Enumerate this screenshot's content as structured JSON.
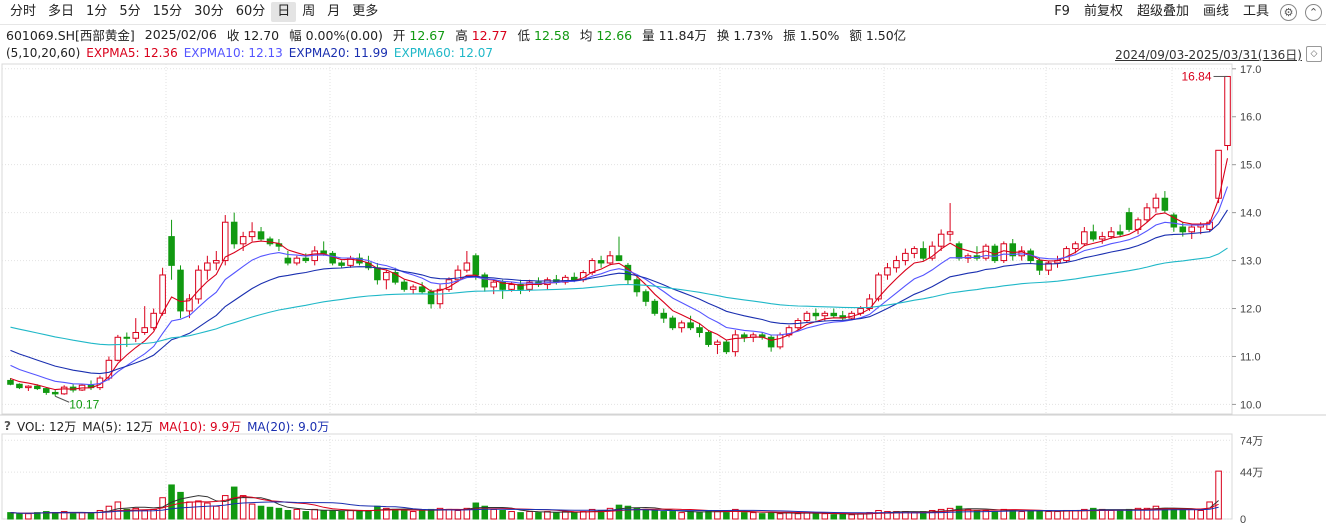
{
  "toolbar": {
    "periods": [
      "分时",
      "多日",
      "1分",
      "5分",
      "15分",
      "30分",
      "60分",
      "日",
      "周",
      "月",
      "更多"
    ],
    "active": "日",
    "right_items": [
      "F9",
      "前复权",
      "超级叠加",
      "画线",
      "工具"
    ],
    "icons": [
      "settings-icon",
      "collapse-icon"
    ]
  },
  "info": {
    "code": "601069.SH[西部黄金]",
    "date": "2025/02/06",
    "close_label": "收",
    "close": "12.70",
    "change_label": "幅",
    "change": "0.00%(0.00)",
    "open_label": "开",
    "open": "12.67",
    "high_label": "高",
    "high": "12.77",
    "low_label": "低",
    "low": "12.58",
    "avg_label": "均",
    "avg": "12.66",
    "vol_label": "量",
    "vol": "11.84万",
    "turnover_label": "换",
    "turnover": "1.73%",
    "amplitude_label": "振",
    "amplitude": "1.50%",
    "amount_label": "额",
    "amount": "1.50亿"
  },
  "ma_legend": {
    "params": "(5,10,20,60)",
    "items": [
      {
        "text": "EXPMA5: 12.36",
        "color": "#d9001b"
      },
      {
        "text": "EXPMA10: 12.13",
        "color": "#5555ff"
      },
      {
        "text": "EXPMA20: 11.99",
        "color": "#1a2fb0"
      },
      {
        "text": "EXPMA60: 12.07",
        "color": "#20b8c8"
      }
    ]
  },
  "range": "2024/09/03-2025/03/31(136日)",
  "vol_legend": {
    "help": "?",
    "vol": "VOL: 12万",
    "ma5": "MA(5): 12万",
    "ma10": "MA(10): 9.9万",
    "ma20": "MA(20): 9.0万",
    "ma10_color": "#d9001b",
    "ma20_color": "#1a2fb0"
  },
  "colors": {
    "up": "#d9001b",
    "down": "#119911",
    "grid": "#e2e2e2"
  },
  "chart_data": {
    "type": "candlestick",
    "title": "601069.SH[西部黄金]",
    "price_axis": {
      "ylim": [
        9.8,
        17.1
      ],
      "ticks": [
        10.0,
        11.0,
        12.0,
        13.0,
        14.0,
        15.0,
        16.0,
        17.0
      ]
    },
    "volume_axis": {
      "ylim": [
        0,
        78
      ],
      "ticks": [
        0,
        44,
        74
      ],
      "tick_labels": [
        "0",
        "44万",
        "74万"
      ]
    },
    "annotations": [
      {
        "text": "16.84",
        "kind": "max"
      },
      {
        "text": "10.17",
        "kind": "min"
      }
    ],
    "ohlc": [
      [
        10.5,
        10.55,
        10.4,
        10.42
      ],
      [
        10.42,
        10.44,
        10.32,
        10.35
      ],
      [
        10.35,
        10.4,
        10.28,
        10.38
      ],
      [
        10.38,
        10.42,
        10.3,
        10.33
      ],
      [
        10.33,
        10.36,
        10.2,
        10.25
      ],
      [
        10.25,
        10.3,
        10.17,
        10.22
      ],
      [
        10.22,
        10.4,
        10.2,
        10.36
      ],
      [
        10.36,
        10.42,
        10.25,
        10.3
      ],
      [
        10.3,
        10.42,
        10.28,
        10.4
      ],
      [
        10.4,
        10.5,
        10.3,
        10.35
      ],
      [
        10.35,
        10.6,
        10.3,
        10.55
      ],
      [
        10.55,
        11.0,
        10.5,
        10.92
      ],
      [
        10.92,
        11.45,
        10.9,
        11.4
      ],
      [
        11.4,
        11.5,
        11.2,
        11.38
      ],
      [
        11.38,
        11.8,
        11.3,
        11.5
      ],
      [
        11.5,
        12.05,
        11.45,
        11.6
      ],
      [
        11.6,
        12.0,
        11.55,
        11.9
      ],
      [
        11.9,
        12.85,
        11.85,
        12.7
      ],
      [
        13.5,
        13.85,
        12.6,
        12.9
      ],
      [
        12.8,
        12.9,
        11.8,
        11.95
      ],
      [
        11.95,
        12.3,
        11.8,
        12.2
      ],
      [
        12.2,
        12.9,
        12.1,
        12.8
      ],
      [
        12.8,
        13.1,
        12.6,
        12.95
      ],
      [
        12.95,
        13.2,
        12.8,
        13.0
      ],
      [
        13.0,
        13.95,
        12.9,
        13.8
      ],
      [
        13.8,
        14.0,
        13.25,
        13.35
      ],
      [
        13.35,
        13.6,
        13.2,
        13.5
      ],
      [
        13.5,
        13.8,
        13.4,
        13.6
      ],
      [
        13.6,
        13.7,
        13.4,
        13.45
      ],
      [
        13.45,
        13.5,
        13.3,
        13.35
      ],
      [
        13.35,
        13.45,
        13.2,
        13.3
      ],
      [
        13.05,
        13.2,
        12.9,
        12.95
      ],
      [
        12.95,
        13.1,
        12.9,
        13.05
      ],
      [
        13.05,
        13.15,
        12.95,
        13.0
      ],
      [
        13.0,
        13.3,
        12.9,
        13.2
      ],
      [
        13.2,
        13.4,
        13.1,
        13.15
      ],
      [
        13.15,
        13.2,
        12.9,
        12.95
      ],
      [
        12.95,
        13.0,
        12.85,
        12.9
      ],
      [
        12.9,
        13.1,
        12.85,
        13.05
      ],
      [
        13.05,
        13.15,
        12.9,
        12.95
      ],
      [
        12.95,
        13.1,
        12.8,
        12.85
      ],
      [
        12.85,
        12.95,
        12.5,
        12.6
      ],
      [
        12.6,
        12.8,
        12.4,
        12.75
      ],
      [
        12.75,
        12.85,
        12.5,
        12.55
      ],
      [
        12.55,
        12.6,
        12.35,
        12.4
      ],
      [
        12.4,
        12.5,
        12.3,
        12.45
      ],
      [
        12.45,
        12.55,
        12.3,
        12.35
      ],
      [
        12.35,
        12.4,
        12.0,
        12.1
      ],
      [
        12.1,
        12.5,
        12.0,
        12.4
      ],
      [
        12.4,
        12.65,
        12.35,
        12.6
      ],
      [
        12.6,
        12.9,
        12.55,
        12.8
      ],
      [
        12.8,
        13.2,
        12.75,
        12.95
      ],
      [
        13.1,
        13.15,
        12.6,
        12.7
      ],
      [
        12.7,
        12.75,
        12.35,
        12.45
      ],
      [
        12.45,
        12.6,
        12.3,
        12.55
      ],
      [
        12.55,
        12.6,
        12.2,
        12.4
      ],
      [
        12.4,
        12.55,
        12.35,
        12.5
      ],
      [
        12.5,
        12.6,
        12.3,
        12.4
      ],
      [
        12.4,
        12.6,
        12.35,
        12.55
      ],
      [
        12.55,
        12.65,
        12.45,
        12.5
      ],
      [
        12.5,
        12.65,
        12.4,
        12.6
      ],
      [
        12.6,
        12.7,
        12.5,
        12.55
      ],
      [
        12.55,
        12.7,
        12.5,
        12.65
      ],
      [
        12.65,
        12.75,
        12.55,
        12.6
      ],
      [
        12.6,
        12.8,
        12.55,
        12.75
      ],
      [
        12.75,
        13.05,
        12.7,
        13.0
      ],
      [
        13.0,
        13.1,
        12.85,
        12.95
      ],
      [
        12.95,
        13.2,
        12.9,
        13.1
      ],
      [
        13.1,
        13.5,
        13.0,
        13.0
      ],
      [
        12.9,
        12.95,
        12.5,
        12.6
      ],
      [
        12.6,
        12.65,
        12.25,
        12.35
      ],
      [
        12.35,
        12.4,
        12.05,
        12.15
      ],
      [
        12.15,
        12.2,
        11.85,
        11.9
      ],
      [
        11.9,
        12.0,
        11.7,
        11.8
      ],
      [
        11.8,
        11.85,
        11.55,
        11.6
      ],
      [
        11.6,
        11.75,
        11.5,
        11.7
      ],
      [
        11.7,
        11.85,
        11.55,
        11.6
      ],
      [
        11.6,
        11.7,
        11.4,
        11.5
      ],
      [
        11.5,
        11.55,
        11.2,
        11.25
      ],
      [
        11.25,
        11.35,
        11.05,
        11.3
      ],
      [
        11.3,
        11.35,
        11.05,
        11.1
      ],
      [
        11.1,
        11.55,
        11.0,
        11.45
      ],
      [
        11.45,
        11.5,
        11.3,
        11.4
      ],
      [
        11.4,
        11.5,
        11.3,
        11.45
      ],
      [
        11.45,
        11.5,
        11.35,
        11.4
      ],
      [
        11.4,
        11.45,
        11.1,
        11.2
      ],
      [
        11.2,
        11.5,
        11.15,
        11.45
      ],
      [
        11.45,
        11.65,
        11.4,
        11.6
      ],
      [
        11.6,
        11.8,
        11.55,
        11.75
      ],
      [
        11.75,
        11.95,
        11.7,
        11.9
      ],
      [
        11.9,
        12.0,
        11.75,
        11.85
      ],
      [
        11.85,
        11.95,
        11.75,
        11.9
      ],
      [
        11.9,
        12.0,
        11.8,
        11.85
      ],
      [
        11.85,
        11.95,
        11.75,
        11.8
      ],
      [
        11.8,
        11.95,
        11.75,
        11.9
      ],
      [
        11.9,
        12.05,
        11.85,
        12.0
      ],
      [
        12.0,
        12.3,
        11.95,
        12.2
      ],
      [
        12.2,
        12.75,
        12.15,
        12.7
      ],
      [
        12.7,
        12.95,
        12.6,
        12.85
      ],
      [
        12.85,
        13.1,
        12.75,
        13.0
      ],
      [
        13.0,
        13.25,
        12.9,
        13.15
      ],
      [
        13.15,
        13.3,
        13.05,
        13.25
      ],
      [
        13.25,
        13.4,
        13.0,
        13.05
      ],
      [
        13.05,
        13.4,
        13.0,
        13.3
      ],
      [
        13.3,
        13.65,
        13.2,
        13.55
      ],
      [
        13.55,
        14.2,
        13.4,
        13.6
      ],
      [
        13.35,
        13.4,
        13.0,
        13.05
      ],
      [
        13.05,
        13.15,
        12.95,
        13.1
      ],
      [
        13.1,
        13.3,
        13.0,
        13.05
      ],
      [
        13.05,
        13.35,
        13.0,
        13.3
      ],
      [
        13.3,
        13.35,
        12.95,
        13.0
      ],
      [
        13.0,
        13.4,
        12.95,
        13.35
      ],
      [
        13.35,
        13.45,
        13.0,
        13.1
      ],
      [
        13.1,
        13.3,
        13.0,
        13.2
      ],
      [
        13.2,
        13.25,
        12.95,
        13.0
      ],
      [
        13.0,
        13.05,
        12.7,
        12.8
      ],
      [
        12.8,
        13.0,
        12.7,
        12.95
      ],
      [
        12.95,
        13.1,
        12.85,
        13.0
      ],
      [
        13.0,
        13.3,
        12.95,
        13.25
      ],
      [
        13.25,
        13.4,
        13.15,
        13.35
      ],
      [
        13.35,
        13.7,
        13.3,
        13.6
      ],
      [
        13.6,
        13.75,
        13.4,
        13.45
      ],
      [
        13.45,
        13.6,
        13.35,
        13.5
      ],
      [
        13.5,
        13.7,
        13.45,
        13.6
      ],
      [
        13.6,
        13.75,
        13.5,
        13.55
      ],
      [
        14.0,
        14.1,
        13.6,
        13.65
      ],
      [
        13.65,
        13.9,
        13.55,
        13.85
      ],
      [
        13.85,
        14.2,
        13.8,
        14.1
      ],
      [
        14.1,
        14.4,
        14.0,
        14.3
      ],
      [
        14.3,
        14.45,
        14.0,
        14.05
      ],
      [
        13.95,
        14.0,
        13.6,
        13.7
      ],
      [
        13.7,
        13.8,
        13.5,
        13.6
      ],
      [
        13.6,
        13.75,
        13.45,
        13.7
      ],
      [
        13.7,
        13.8,
        13.55,
        13.75
      ],
      [
        13.65,
        13.85,
        13.6,
        13.8
      ],
      [
        14.3,
        15.3,
        14.2,
        15.3
      ],
      [
        15.4,
        16.84,
        15.3,
        16.84
      ]
    ],
    "volume": [
      6,
      5,
      5,
      6,
      7,
      6,
      7,
      5,
      6,
      6,
      8,
      12,
      16,
      9,
      10,
      8,
      9,
      20,
      32,
      25,
      16,
      17,
      15,
      12,
      22,
      30,
      22,
      14,
      12,
      11,
      10,
      8,
      9,
      7,
      9,
      8,
      8,
      7,
      8,
      7,
      8,
      12,
      10,
      9,
      8,
      7,
      8,
      9,
      10,
      9,
      8,
      10,
      15,
      12,
      9,
      8,
      7,
      6,
      7,
      6,
      7,
      6,
      7,
      6,
      7,
      9,
      8,
      10,
      13,
      12,
      10,
      9,
      8,
      7,
      7,
      6,
      7,
      6,
      8,
      7,
      6,
      9,
      6,
      6,
      5,
      6,
      5,
      6,
      5,
      6,
      5,
      5,
      4,
      5,
      4,
      5,
      6,
      8,
      7,
      7,
      7,
      6,
      7,
      8,
      9,
      10,
      12,
      9,
      8,
      8,
      7,
      9,
      8,
      7,
      7,
      8,
      7,
      7,
      8,
      8,
      9,
      10,
      9,
      8,
      8,
      9,
      10,
      10,
      12,
      10,
      9,
      9,
      9,
      8,
      16,
      45
    ]
  }
}
